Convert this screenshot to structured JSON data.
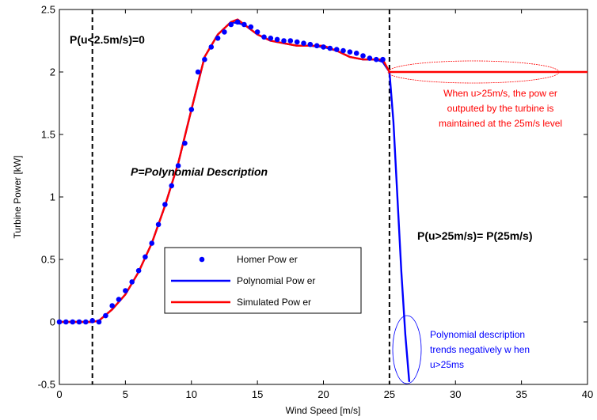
{
  "chart_data": {
    "type": "line",
    "xlabel": "Wind Speed [m/s]",
    "ylabel": "Turbine Power [kW]",
    "xlim": [
      0,
      40
    ],
    "ylim": [
      -0.5,
      2.5
    ],
    "xticks": [
      0,
      5,
      10,
      15,
      20,
      25,
      30,
      35,
      40
    ],
    "yticks": [
      -0.5,
      0,
      0.5,
      1,
      1.5,
      2,
      2.5
    ],
    "grid": false,
    "legend_position": "lower-left",
    "series": [
      {
        "name": "Homer Pow er",
        "style": "markers",
        "color": "#0000ff",
        "points": [
          [
            0,
            0
          ],
          [
            0.5,
            0
          ],
          [
            1,
            0
          ],
          [
            1.5,
            0
          ],
          [
            2,
            0
          ],
          [
            2.5,
            0.01
          ],
          [
            3,
            0
          ],
          [
            3.5,
            0.05
          ],
          [
            4,
            0.13
          ],
          [
            4.5,
            0.18
          ],
          [
            5,
            0.25
          ],
          [
            5.5,
            0.32
          ],
          [
            6,
            0.41
          ],
          [
            6.5,
            0.52
          ],
          [
            7,
            0.63
          ],
          [
            7.5,
            0.78
          ],
          [
            8,
            0.94
          ],
          [
            8.5,
            1.09
          ],
          [
            9,
            1.25
          ],
          [
            9.5,
            1.43
          ],
          [
            10,
            1.7
          ],
          [
            10.5,
            2.0
          ],
          [
            11,
            2.1
          ],
          [
            11.5,
            2.2
          ],
          [
            12,
            2.27
          ],
          [
            12.5,
            2.32
          ],
          [
            13,
            2.38
          ],
          [
            13.5,
            2.4
          ],
          [
            14,
            2.38
          ],
          [
            14.5,
            2.36
          ],
          [
            15,
            2.32
          ],
          [
            15.5,
            2.28
          ],
          [
            16,
            2.27
          ],
          [
            16.5,
            2.26
          ],
          [
            17,
            2.25
          ],
          [
            17.5,
            2.25
          ],
          [
            18,
            2.24
          ],
          [
            18.5,
            2.23
          ],
          [
            19,
            2.22
          ],
          [
            19.5,
            2.21
          ],
          [
            20,
            2.2
          ],
          [
            20.5,
            2.19
          ],
          [
            21,
            2.18
          ],
          [
            21.5,
            2.17
          ],
          [
            22,
            2.16
          ],
          [
            22.5,
            2.15
          ],
          [
            23,
            2.13
          ],
          [
            23.5,
            2.11
          ],
          [
            24,
            2.1
          ],
          [
            24.5,
            2.1
          ]
        ]
      },
      {
        "name": "Polynomial Pow er",
        "style": "line",
        "color": "#0000ff",
        "points": [
          [
            0,
            0
          ],
          [
            2.5,
            0
          ],
          [
            3,
            0.01
          ],
          [
            4,
            0.1
          ],
          [
            5,
            0.22
          ],
          [
            6,
            0.4
          ],
          [
            7,
            0.63
          ],
          [
            8,
            0.93
          ],
          [
            9,
            1.27
          ],
          [
            10,
            1.7
          ],
          [
            11,
            2.12
          ],
          [
            12,
            2.3
          ],
          [
            13,
            2.4
          ],
          [
            14,
            2.38
          ],
          [
            15,
            2.3
          ],
          [
            16,
            2.25
          ],
          [
            17,
            2.23
          ],
          [
            18,
            2.21
          ],
          [
            19,
            2.21
          ],
          [
            20,
            2.2
          ],
          [
            21,
            2.17
          ],
          [
            22,
            2.12
          ],
          [
            23,
            2.1
          ],
          [
            24,
            2.1
          ],
          [
            24.5,
            2.08
          ],
          [
            25,
            2.0
          ],
          [
            25.3,
            1.6
          ],
          [
            25.6,
            1.0
          ],
          [
            25.9,
            0.4
          ],
          [
            26.2,
            -0.1
          ],
          [
            26.5,
            -0.48
          ]
        ]
      },
      {
        "name": "Simulated Pow er",
        "style": "line",
        "color": "#ff0000",
        "points": [
          [
            0,
            0
          ],
          [
            2.5,
            0
          ],
          [
            3,
            0.01
          ],
          [
            4,
            0.1
          ],
          [
            5,
            0.22
          ],
          [
            6,
            0.4
          ],
          [
            7,
            0.63
          ],
          [
            8,
            0.93
          ],
          [
            9,
            1.27
          ],
          [
            10,
            1.7
          ],
          [
            11,
            2.12
          ],
          [
            12,
            2.3
          ],
          [
            13,
            2.4
          ],
          [
            13.5,
            2.42
          ],
          [
            14,
            2.38
          ],
          [
            15,
            2.3
          ],
          [
            16,
            2.25
          ],
          [
            17,
            2.23
          ],
          [
            18,
            2.21
          ],
          [
            19,
            2.21
          ],
          [
            20,
            2.21
          ],
          [
            21,
            2.17
          ],
          [
            22,
            2.12
          ],
          [
            23,
            2.1
          ],
          [
            24,
            2.1
          ],
          [
            24.5,
            2.1
          ],
          [
            25,
            2.0
          ],
          [
            40,
            2.0
          ]
        ]
      }
    ],
    "vlines": [
      2.5,
      25
    ],
    "annotations": {
      "p_low": "P(u<2.5m/s)=0",
      "p_poly": "P=Polynomial Description",
      "p_high": "P(u>25m/s)= P(25m/s)",
      "red_note": [
        "When u>25m/s, the pow er",
        "outputed by the turbine is",
        "maintained at the 25m/s level"
      ],
      "blue_note": [
        "Polynomial description",
        "trends negatively w hen",
        "u>25ms"
      ]
    }
  }
}
